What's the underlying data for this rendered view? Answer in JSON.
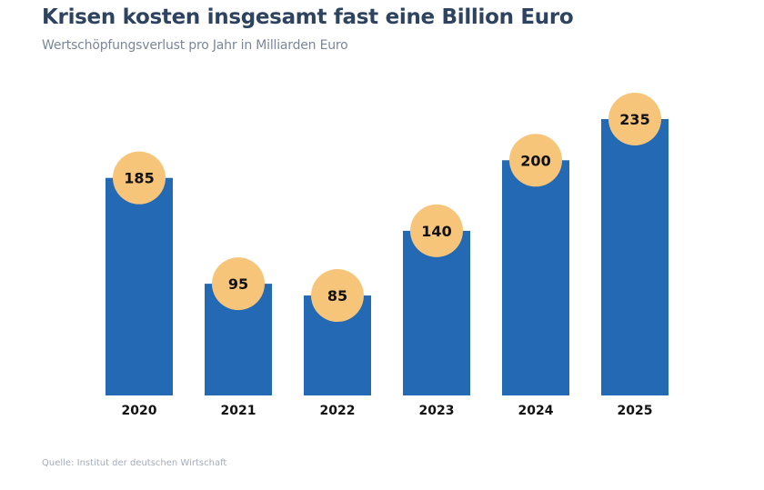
{
  "chart_data": {
    "type": "bar",
    "title": "Krisen kosten insgesamt fast eine Billion Euro",
    "subtitle": "Wertschöpfungsverlust pro Jahr in Milliarden Euro",
    "source": "Quelle: Institut der deutschen Wirtschaft",
    "categories": [
      "2020",
      "2021",
      "2022",
      "2023",
      "2024",
      "2025"
    ],
    "values": [
      185,
      95,
      85,
      140,
      200,
      235
    ],
    "ylim": [
      0,
      235
    ],
    "grid": false,
    "colors": {
      "bar": "#2469b3",
      "label_circle": "#f7c57a",
      "title": "#2e4360"
    }
  }
}
